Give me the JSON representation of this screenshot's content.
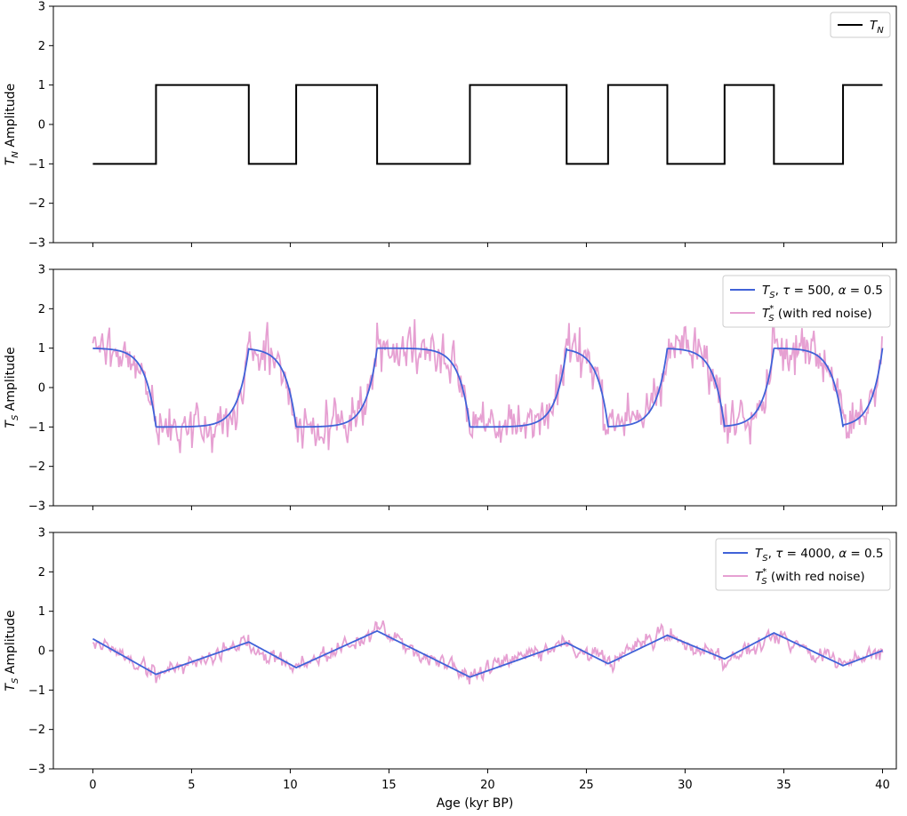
{
  "chart_data": [
    {
      "type": "line",
      "ylabel": "T_N Amplitude",
      "xlim": [
        -2,
        40.7
      ],
      "ylim": [
        -3,
        3
      ],
      "yticks": [
        -3,
        -2,
        -1,
        0,
        1,
        2,
        3
      ],
      "legend": "top-right",
      "series": [
        {
          "name": "T_N",
          "color": "#000000",
          "kind": "square_wave",
          "start_value": -1,
          "transitions": [
            3.2,
            7.9,
            10.3,
            14.4,
            19.1,
            24.0,
            26.1,
            29.1,
            32.0,
            34.5,
            38.0
          ],
          "x_range": [
            0,
            40
          ]
        }
      ]
    },
    {
      "type": "line",
      "ylabel": "T_S Amplitude",
      "xlim": [
        -2,
        40.7
      ],
      "ylim": [
        -3,
        3
      ],
      "yticks": [
        -3,
        -2,
        -1,
        0,
        1,
        2,
        3
      ],
      "legend": "top-right",
      "series": [
        {
          "name": "T_S, τ = 500, α = 0.5",
          "color": "#4062d8",
          "kind": "relaxation",
          "tau_kyr": 0.5
        },
        {
          "name": "T_S* (with red noise)",
          "color": "#e6a0d2",
          "kind": "noisy_relaxation",
          "noise_amplitude": 0.35
        }
      ]
    },
    {
      "type": "line",
      "ylabel": "T_S Amplitude",
      "xlabel": "Age (kyr BP)",
      "xlim": [
        -2,
        40.7
      ],
      "ylim": [
        -3,
        3
      ],
      "xticks": [
        0,
        5,
        10,
        15,
        20,
        25,
        30,
        35,
        40
      ],
      "yticks": [
        -3,
        -2,
        -1,
        0,
        1,
        2,
        3
      ],
      "legend": "top-right",
      "series": [
        {
          "name": "T_S, τ = 4000, α = 0.5",
          "color": "#4062d8",
          "kind": "piecewise",
          "points": [
            [
              0,
              0.3
            ],
            [
              3.2,
              -0.6
            ],
            [
              7.9,
              0.22
            ],
            [
              10.3,
              -0.43
            ],
            [
              14.4,
              0.5
            ],
            [
              19.1,
              -0.67
            ],
            [
              24.0,
              0.2
            ],
            [
              26.1,
              -0.33
            ],
            [
              29.1,
              0.39
            ],
            [
              32.0,
              -0.21
            ],
            [
              34.5,
              0.45
            ],
            [
              38.0,
              -0.38
            ],
            [
              40,
              0.0
            ]
          ]
        },
        {
          "name": "T_S* (with red noise)",
          "color": "#e6a0d2",
          "kind": "noisy_piecewise",
          "noise_amplitude": 0.1
        }
      ]
    }
  ]
}
